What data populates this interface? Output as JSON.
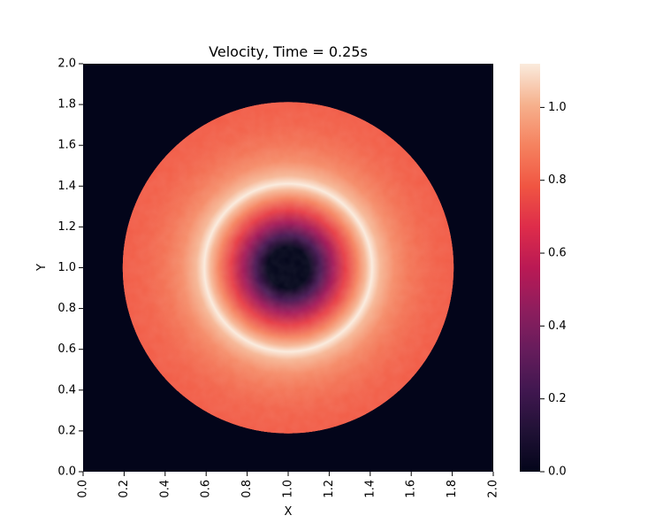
{
  "chart_data": {
    "type": "heatmap",
    "title": "Velocity, Time = 0.25s",
    "xlabel": "X",
    "ylabel": "Y",
    "xlim": [
      0.0,
      2.0
    ],
    "ylim": [
      0.0,
      2.0
    ],
    "x_ticks": [
      "0.0",
      "0.2",
      "0.4",
      "0.6",
      "0.8",
      "1.0",
      "1.2",
      "1.4",
      "1.6",
      "1.8",
      "2.0"
    ],
    "y_ticks": [
      "0.0",
      "0.2",
      "0.4",
      "0.6",
      "0.8",
      "1.0",
      "1.2",
      "1.4",
      "1.6",
      "1.8",
      "2.0"
    ],
    "x_tick_rotation": "vertical",
    "grid": false,
    "colormap": "rocket",
    "background_value": 0.0,
    "field": {
      "shape": "radial",
      "center": [
        1.0,
        1.0
      ],
      "outer_radius": 0.81,
      "ring_peak_radius": 0.41,
      "peak_value": 1.12,
      "outer_band_value": 0.82,
      "inner_zero_radius": 0.1,
      "radial_profile": [
        {
          "r": 0.0,
          "v": 0.0
        },
        {
          "r": 0.1,
          "v": 0.0
        },
        {
          "r": 0.16,
          "v": 0.25
        },
        {
          "r": 0.22,
          "v": 0.5
        },
        {
          "r": 0.28,
          "v": 0.72
        },
        {
          "r": 0.34,
          "v": 0.9
        },
        {
          "r": 0.38,
          "v": 1.02
        },
        {
          "r": 0.41,
          "v": 1.12
        },
        {
          "r": 0.45,
          "v": 1.02
        },
        {
          "r": 0.52,
          "v": 0.92
        },
        {
          "r": 0.6,
          "v": 0.86
        },
        {
          "r": 0.7,
          "v": 0.82
        },
        {
          "r": 0.81,
          "v": 0.8
        },
        {
          "r": 0.815,
          "v": 0.0
        }
      ]
    },
    "colorbar": {
      "vmin": 0.0,
      "vmax": 1.12,
      "ticks": [
        "0.0",
        "0.2",
        "0.4",
        "0.6",
        "0.8",
        "1.0"
      ]
    }
  }
}
